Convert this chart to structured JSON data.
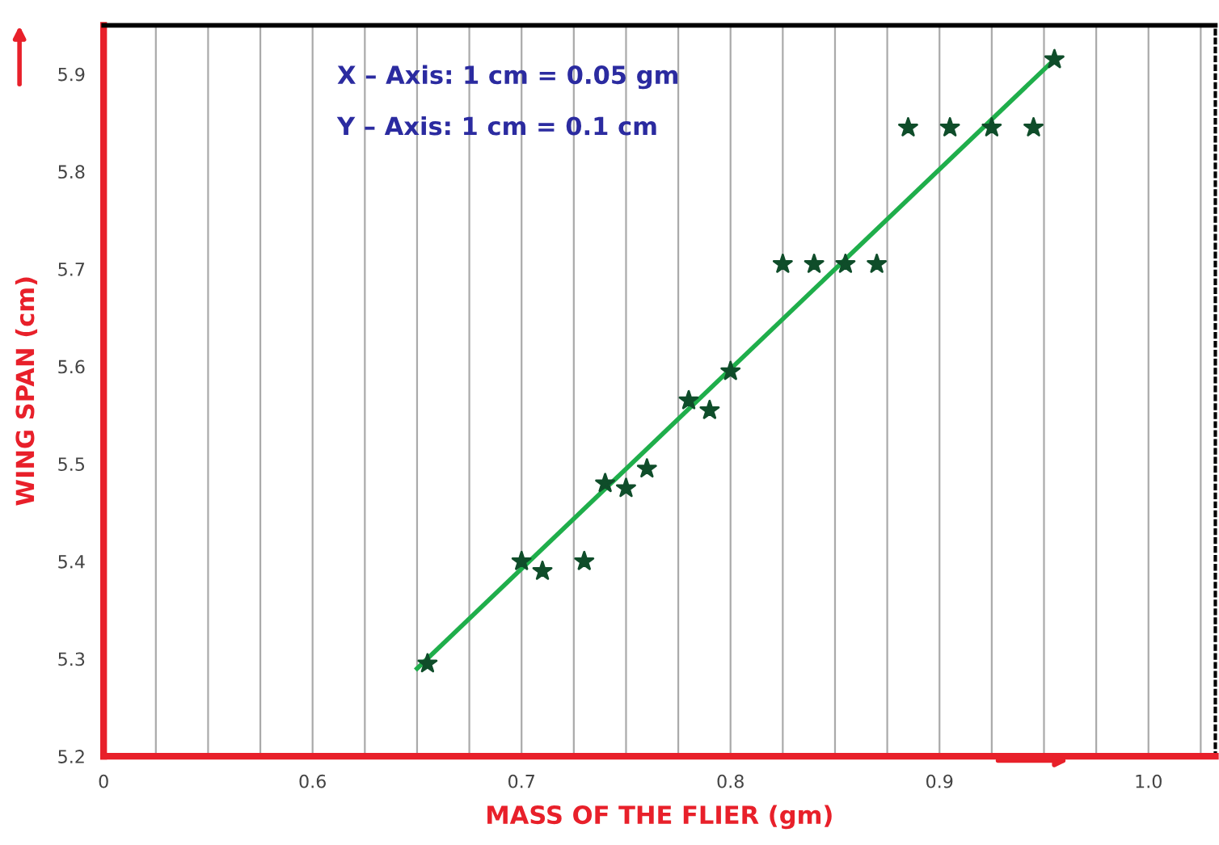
{
  "chart_data": {
    "type": "scatter",
    "xlabel": "MASS OF THE FLIER (gm)",
    "ylabel": "WING SPAN (cm)",
    "annotations": [
      "X – Axis: 1 cm = 0.05 gm",
      "Y – Axis: 1 cm = 0.1 cm"
    ],
    "series": [
      {
        "color": "#0f4d2a",
        "marker": "star",
        "x": [
          0.655,
          0.7,
          0.71,
          0.73,
          0.74,
          0.75,
          0.76,
          0.78,
          0.79,
          0.8,
          0.825,
          0.84,
          0.855,
          0.87,
          0.885,
          0.905,
          0.925,
          0.945,
          0.955
        ],
        "values": [
          5.295,
          5.4,
          5.39,
          5.4,
          5.48,
          5.475,
          5.495,
          5.565,
          5.555,
          5.595,
          5.705,
          5.705,
          5.705,
          5.705,
          5.845,
          5.845,
          5.845,
          5.845,
          5.915
        ]
      },
      {
        "type": "line",
        "color": "#1fae4b",
        "marker": "none",
        "line_style": "solid",
        "x": [
          0.65,
          0.955
        ],
        "values": [
          5.29,
          5.915
        ]
      }
    ],
    "xlim": [
      0.5,
      1.032
    ],
    "ylim": [
      5.2,
      5.95
    ],
    "xticks": [
      {
        "value": 0.5,
        "label": "0"
      },
      {
        "value": 0.525,
        "label": null
      },
      {
        "value": 0.55,
        "label": null
      },
      {
        "value": 0.575,
        "label": null
      },
      0.6,
      {
        "value": 0.625,
        "label": null
      },
      {
        "value": 0.65,
        "label": null
      },
      {
        "value": 0.675,
        "label": null
      },
      0.7,
      {
        "value": 0.725,
        "label": null
      },
      {
        "value": 0.75,
        "label": null
      },
      {
        "value": 0.775,
        "label": null
      },
      0.8,
      {
        "value": 0.825,
        "label": null
      },
      {
        "value": 0.85,
        "label": null
      },
      {
        "value": 0.875,
        "label": null
      },
      0.9,
      {
        "value": 0.925,
        "label": null
      },
      {
        "value": 0.95,
        "label": null
      },
      {
        "value": 0.975,
        "label": null
      },
      {
        "value": 1.0,
        "label": "1.0"
      },
      {
        "value": 1.025,
        "label": null
      }
    ],
    "yticks": [
      5.2,
      5.3,
      5.4,
      5.5,
      5.6,
      5.7,
      5.8,
      5.9
    ],
    "grid": "x",
    "legend": false
  }
}
